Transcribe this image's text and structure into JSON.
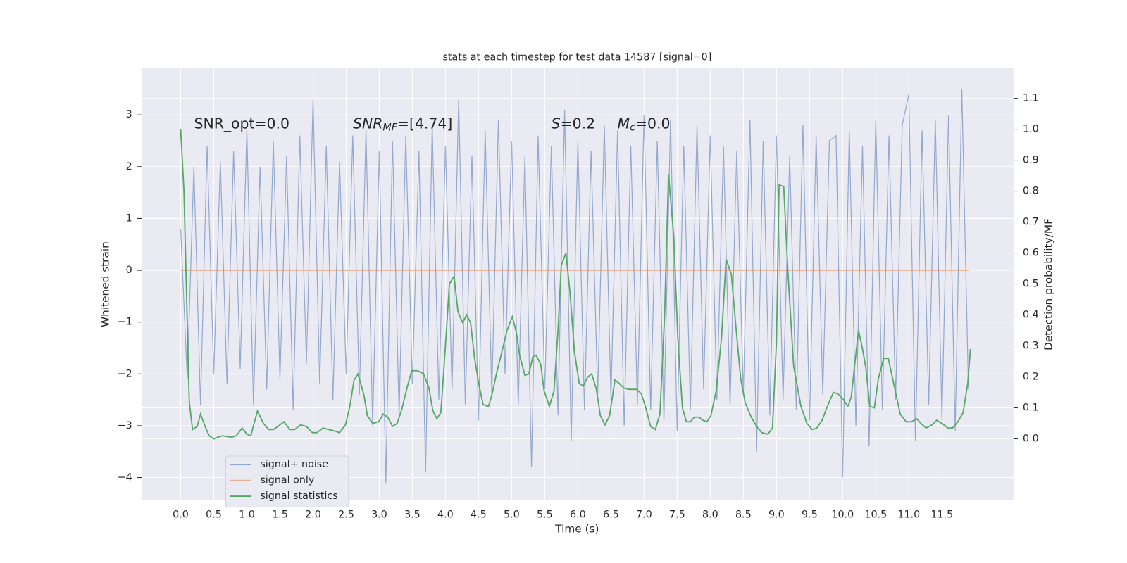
{
  "chart_data": {
    "type": "line",
    "title": "stats at each timestep for test data 14587 [signal=0]",
    "xlabel": "Time (s)",
    "ylabel": "Whitened strain",
    "y2label": "Detection probability/MF",
    "annotations": [
      [
        "SNR_opt=0.0"
      ],
      [
        "SNR",
        "MF",
        "=[4.74]"
      ],
      [
        "S",
        "=0.2"
      ],
      [
        "M",
        "c",
        "=0.0"
      ]
    ],
    "xlim": [
      -0.59,
      12.58
    ],
    "ylim": [
      -4.43,
      3.9
    ],
    "y2lim": [
      -0.197,
      1.197
    ],
    "xticks": [
      {
        "value": 0,
        "label": "0.0"
      },
      {
        "value": 0.5,
        "label": "0.5"
      },
      {
        "value": 1,
        "label": "1.0"
      },
      {
        "value": 1.5,
        "label": "1.5"
      },
      {
        "value": 2,
        "label": "2.0"
      },
      {
        "value": 2.5,
        "label": "2.5"
      },
      {
        "value": 3,
        "label": "3.0"
      },
      {
        "value": 3.5,
        "label": "3.5"
      },
      {
        "value": 4,
        "label": "4.0"
      },
      {
        "value": 4.5,
        "label": "4.5"
      },
      {
        "value": 5,
        "label": "5.0"
      },
      {
        "value": 5.5,
        "label": "5.5"
      },
      {
        "value": 6,
        "label": "6.0"
      },
      {
        "value": 6.5,
        "label": "6.5"
      },
      {
        "value": 7,
        "label": "7.0"
      },
      {
        "value": 7.5,
        "label": "7.5"
      },
      {
        "value": 8,
        "label": "8.0"
      },
      {
        "value": 8.5,
        "label": "8.5"
      },
      {
        "value": 9,
        "label": "9.0"
      },
      {
        "value": 9.5,
        "label": "9.5"
      },
      {
        "value": 10,
        "label": "10.0"
      },
      {
        "value": 10.5,
        "label": "10.5"
      },
      {
        "value": 11,
        "label": "11.0"
      },
      {
        "value": 11.5,
        "label": "11.5"
      }
    ],
    "yticks": [
      {
        "value": -4,
        "label": "−4"
      },
      {
        "value": -3,
        "label": "−3"
      },
      {
        "value": -2,
        "label": "−2"
      },
      {
        "value": -1,
        "label": "−1"
      },
      0,
      1,
      2,
      3
    ],
    "y2ticks": [
      {
        "value": 0,
        "label": "0.0"
      },
      {
        "value": 0.1,
        "label": "0.1"
      },
      {
        "value": 0.2,
        "label": "0.2"
      },
      {
        "value": 0.3,
        "label": "0.3"
      },
      {
        "value": 0.4,
        "label": "0.4"
      },
      {
        "value": 0.5,
        "label": "0.5"
      },
      {
        "value": 0.6,
        "label": "0.6"
      },
      {
        "value": 0.7,
        "label": "0.7"
      },
      {
        "value": 0.8,
        "label": "0.8"
      },
      {
        "value": 0.9,
        "label": "0.9"
      },
      {
        "value": 1,
        "label": "1.0"
      },
      {
        "value": 1.1,
        "label": "1.1"
      }
    ],
    "grid": true,
    "series": [
      {
        "name": "signal+ noise",
        "color": "#4c72b0",
        "x": [
          0,
          0.1,
          0.2,
          0.3,
          0.4,
          0.5,
          0.6,
          0.7,
          0.8,
          0.9,
          1,
          1.1,
          1.2,
          1.3,
          1.4,
          1.5,
          1.6,
          1.7,
          1.8,
          1.9,
          2,
          2.1,
          2.2,
          2.3,
          2.4,
          2.5,
          2.6,
          2.7,
          2.8,
          2.9,
          3,
          3.1,
          3.2,
          3.3,
          3.4,
          3.5,
          3.6,
          3.7,
          3.8,
          3.9,
          4,
          4.1,
          4.2,
          4.3,
          4.4,
          4.5,
          4.6,
          4.7,
          4.8,
          4.9,
          5,
          5.1,
          5.2,
          5.3,
          5.4,
          5.5,
          5.6,
          5.7,
          5.8,
          5.9,
          6,
          6.1,
          6.2,
          6.3,
          6.4,
          6.5,
          6.6,
          6.7,
          6.8,
          6.9,
          7,
          7.1,
          7.2,
          7.3,
          7.4,
          7.5,
          7.6,
          7.7,
          7.8,
          7.9,
          8,
          8.1,
          8.2,
          8.3,
          8.4,
          8.5,
          8.6,
          8.7,
          8.8,
          8.9,
          9,
          9.1,
          9.2,
          9.3,
          9.4,
          9.5,
          9.6,
          9.7,
          9.8,
          9.9,
          10,
          10.1,
          10.2,
          10.3,
          10.4,
          10.5,
          10.6,
          10.7,
          10.8,
          10.9,
          11,
          11.1,
          11.2,
          11.3,
          11.4,
          11.5,
          11.6,
          11.7,
          11.8,
          11.9
        ],
        "values": [
          0.8,
          -2.1,
          2.0,
          -2.6,
          2.4,
          -2.0,
          2.1,
          -2.2,
          2.3,
          -1.9,
          2.7,
          -2.6,
          2.0,
          -2.3,
          2.5,
          -2.1,
          2.2,
          -2.7,
          2.6,
          -1.8,
          3.3,
          -2.2,
          2.4,
          -2.5,
          2.1,
          -2.0,
          2.6,
          -2.4,
          2.7,
          -3.0,
          2.3,
          -4.1,
          2.5,
          -2.8,
          2.6,
          -2.2,
          2.3,
          -3.9,
          2.8,
          -2.5,
          2.4,
          -2.3,
          3.3,
          -2.6,
          2.2,
          -2.9,
          2.7,
          -2.4,
          2.9,
          -2.0,
          2.5,
          -2.6,
          2.2,
          -3.8,
          2.6,
          -2.3,
          2.4,
          -2.8,
          3.1,
          -3.3,
          2.5,
          -2.7,
          2.3,
          -2.4,
          2.8,
          -2.5,
          2.7,
          -3.0,
          2.4,
          -2.6,
          3.0,
          -2.7,
          2.5,
          -2.9,
          2.9,
          -3.1,
          2.4,
          -2.7,
          2.8,
          -2.3,
          2.6,
          -2.5,
          2.4,
          -2.6,
          2.3,
          -2.4,
          2.9,
          -3.5,
          2.5,
          -2.8,
          2.6,
          -2.5,
          2.2,
          -2.7,
          2.8,
          -2.9,
          2.6,
          -2.4,
          2.5,
          2.6,
          -4.0,
          2.7,
          -3.0,
          2.4,
          -3.4,
          2.9,
          -2.7,
          2.6,
          -2.5,
          2.8,
          3.4,
          -3.3,
          2.7,
          -2.6,
          2.9,
          -2.9,
          3.0,
          -3.1,
          3.5,
          -2.3
        ]
      },
      {
        "name": "signal only",
        "color": "#dd8452",
        "x": [
          0,
          11.9
        ],
        "values": [
          0,
          0
        ]
      },
      {
        "name": "signal statistics",
        "color": "#55a868",
        "axis": "y2",
        "x": [
          0,
          0.05,
          0.13,
          0.18,
          0.25,
          0.3,
          0.37,
          0.43,
          0.5,
          0.56,
          0.63,
          0.71,
          0.77,
          0.84,
          0.93,
          1.0,
          1.06,
          1.16,
          1.25,
          1.33,
          1.4,
          1.47,
          1.56,
          1.65,
          1.72,
          1.81,
          1.9,
          1.99,
          2.06,
          2.15,
          2.24,
          2.33,
          2.4,
          2.49,
          2.56,
          2.62,
          2.68,
          2.77,
          2.82,
          2.9,
          2.99,
          3.06,
          3.13,
          3.2,
          3.27,
          3.34,
          3.42,
          3.49,
          3.58,
          3.67,
          3.75,
          3.81,
          3.87,
          3.93,
          3.98,
          4.06,
          4.13,
          4.19,
          4.26,
          4.32,
          4.38,
          4.44,
          4.51,
          4.57,
          4.65,
          4.7,
          4.77,
          4.84,
          4.93,
          5.01,
          5.07,
          5.12,
          5.2,
          5.26,
          5.32,
          5.37,
          5.44,
          5.49,
          5.57,
          5.64,
          5.7,
          5.75,
          5.82,
          5.88,
          5.95,
          6.02,
          6.08,
          6.15,
          6.21,
          6.28,
          6.34,
          6.41,
          6.48,
          6.56,
          6.62,
          6.69,
          6.76,
          6.83,
          6.89,
          6.96,
          7.02,
          7.1,
          7.17,
          7.24,
          7.31,
          7.37,
          7.45,
          7.51,
          7.58,
          7.64,
          7.7,
          7.76,
          7.83,
          7.89,
          7.95,
          8.01,
          8.09,
          8.17,
          8.24,
          8.32,
          8.38,
          8.46,
          8.53,
          8.62,
          8.7,
          8.78,
          8.87,
          8.94,
          9.0,
          9.04,
          9.11,
          9.17,
          9.26,
          9.37,
          9.46,
          9.54,
          9.61,
          9.69,
          9.76,
          9.86,
          9.93,
          10.0,
          10.08,
          10.13,
          10.18,
          10.24,
          10.3,
          10.35,
          10.41,
          10.48,
          10.54,
          10.62,
          10.69,
          10.78,
          10.87,
          10.96,
          11.04,
          11.12,
          11.18,
          11.26,
          11.35,
          11.42,
          11.5,
          11.59,
          11.66,
          11.74,
          11.82,
          11.89,
          11.93
        ],
        "values": [
          1.0,
          0.8,
          0.12,
          0.03,
          0.04,
          0.08,
          0.04,
          0.01,
          0.0,
          0.005,
          0.01,
          0.007,
          0.005,
          0.01,
          0.035,
          0.015,
          0.01,
          0.09,
          0.05,
          0.03,
          0.03,
          0.04,
          0.055,
          0.03,
          0.03,
          0.045,
          0.04,
          0.02,
          0.02,
          0.035,
          0.03,
          0.025,
          0.02,
          0.045,
          0.11,
          0.19,
          0.21,
          0.14,
          0.075,
          0.05,
          0.055,
          0.08,
          0.07,
          0.04,
          0.05,
          0.095,
          0.165,
          0.22,
          0.22,
          0.21,
          0.165,
          0.09,
          0.065,
          0.085,
          0.235,
          0.5,
          0.525,
          0.41,
          0.375,
          0.4,
          0.375,
          0.26,
          0.17,
          0.11,
          0.105,
          0.14,
          0.21,
          0.27,
          0.35,
          0.395,
          0.345,
          0.27,
          0.205,
          0.21,
          0.265,
          0.27,
          0.24,
          0.155,
          0.105,
          0.155,
          0.35,
          0.56,
          0.6,
          0.475,
          0.28,
          0.18,
          0.17,
          0.2,
          0.21,
          0.16,
          0.075,
          0.045,
          0.075,
          0.19,
          0.18,
          0.165,
          0.16,
          0.16,
          0.16,
          0.145,
          0.105,
          0.04,
          0.03,
          0.08,
          0.395,
          0.855,
          0.65,
          0.325,
          0.1,
          0.055,
          0.055,
          0.07,
          0.07,
          0.06,
          0.055,
          0.075,
          0.155,
          0.325,
          0.58,
          0.53,
          0.38,
          0.195,
          0.115,
          0.07,
          0.04,
          0.02,
          0.015,
          0.035,
          0.31,
          0.82,
          0.815,
          0.55,
          0.235,
          0.105,
          0.05,
          0.03,
          0.035,
          0.06,
          0.1,
          0.15,
          0.145,
          0.13,
          0.105,
          0.135,
          0.235,
          0.35,
          0.29,
          0.23,
          0.105,
          0.1,
          0.195,
          0.26,
          0.26,
          0.17,
          0.08,
          0.055,
          0.055,
          0.065,
          0.05,
          0.035,
          0.045,
          0.06,
          0.05,
          0.035,
          0.035,
          0.055,
          0.085,
          0.18,
          0.29
        ]
      }
    ]
  }
}
